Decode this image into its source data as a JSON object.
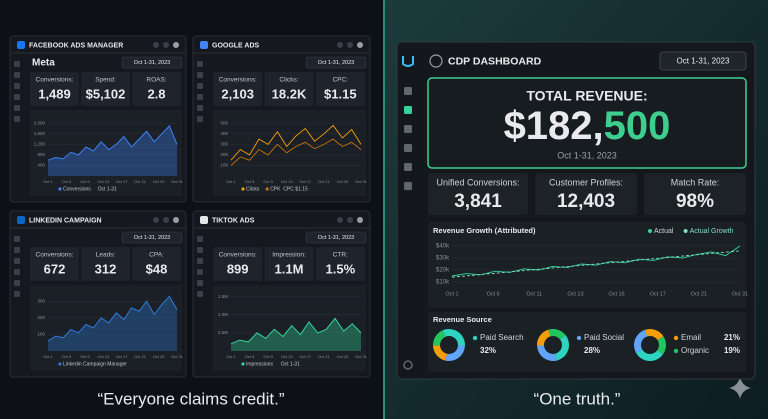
{
  "left": {
    "panels": [
      {
        "title": "FACEBOOK ADS MANAGER",
        "brand": "Meta",
        "date": "Oct 1-31, 2023",
        "logo_color": "#1877f2",
        "kpis": [
          {
            "label": "Conversions:",
            "value": "1,489"
          },
          {
            "label": "Spend:",
            "value": "$5,102"
          },
          {
            "label": "ROAS:",
            "value": "2.8"
          }
        ],
        "chart": {
          "type": "area",
          "ylim": [
            0,
            2200
          ],
          "yticks": [
            400,
            800,
            {
              "value": 1200,
              "label": "1,200"
            },
            {
              "value": 1600,
              "label": "1,600"
            },
            {
              "value": 2000,
              "label": "2,000"
            }
          ],
          "xticks": [
            "Oct 1",
            "Oct 5",
            "Oct 9",
            "Oct 13",
            "Oct 17",
            "Oct 21",
            "Oct 25",
            "Oct 31"
          ],
          "series": [
            {
              "name": "Conversions",
              "color": "#3b82f6",
              "values": [
                600,
                700,
                650,
                900,
                800,
                1100,
                950,
                1300,
                1000,
                1200,
                1500,
                1100,
                1400,
                1700,
                1300,
                1600,
                1900,
                1200
              ]
            }
          ],
          "legend_note": "Oct 1-31"
        }
      },
      {
        "title": "GOOGLE ADS",
        "date": "Oct 1-31, 2023",
        "logo_color": "#4285f4",
        "kpis": [
          {
            "label": "Conversions:",
            "value": "2,103"
          },
          {
            "label": "Clicks:",
            "value": "18.2K"
          },
          {
            "label": "CPC:",
            "value": "$1.15"
          }
        ],
        "chart": {
          "type": "line",
          "ylim": [
            0,
            550
          ],
          "yticks": [
            100,
            200,
            300,
            400,
            500
          ],
          "xticks": [
            "Oct 1",
            "Oct 5",
            "Oct 9",
            "Oct 13",
            "Oct 17",
            "Oct 21",
            "Oct 25",
            "Oct 31"
          ],
          "series": [
            {
              "name": "Clicks",
              "color": "#f59e0b",
              "values": [
                150,
                250,
                200,
                350,
                300,
                420,
                280,
                380,
                450,
                330,
                400,
                480,
                360,
                440,
                300
              ]
            },
            {
              "name": "CPK",
              "color": "#c2700a",
              "values": [
                100,
                180,
                150,
                250,
                200,
                300,
                220,
                280,
                320,
                260,
                300,
                350,
                280,
                320,
                250
              ]
            }
          ],
          "legend_note": "CPC $1.15"
        }
      },
      {
        "title": "LINKEDIN CAMPAIGN",
        "date": "Oct 1-31, 2023",
        "logo_color": "#0a66c2",
        "kpis": [
          {
            "label": "Conversions:",
            "value": "672"
          },
          {
            "label": "Leads:",
            "value": "312"
          },
          {
            "label": "CPA:",
            "value": "$48"
          }
        ],
        "chart": {
          "type": "area",
          "ylim": [
            0,
            350
          ],
          "yticks": [
            100,
            200,
            300
          ],
          "xticks": [
            "Oct 1",
            "Oct 5",
            "Oct 9",
            "Oct 13",
            "Oct 17",
            "Oct 21",
            "Oct 25",
            "Oct 31"
          ],
          "series": [
            {
              "name": "Linkedin Campaign Manager",
              "color": "#2f7bd8",
              "values": [
                60,
                90,
                80,
                130,
                110,
                160,
                140,
                200,
                170,
                230,
                190,
                260,
                240,
                300,
                220,
                280,
                330,
                250
              ]
            }
          ]
        }
      },
      {
        "title": "TIKTOK ADS",
        "date": "Oct 1-31, 2023",
        "logo_color": "#e5e7eb",
        "kpis": [
          {
            "label": "Conversions:",
            "value": "899"
          },
          {
            "label": "Impression:",
            "value": "1.1M"
          },
          {
            "label": "CTR:",
            "value": "1.5%"
          }
        ],
        "chart": {
          "type": "area",
          "ylim": [
            0,
            1.6
          ],
          "yticks": [
            {
              "value": 0.5,
              "label": "0.5M"
            },
            {
              "value": 1,
              "label": "1.0M"
            },
            {
              "value": 1.5,
              "label": "1.5M"
            }
          ],
          "xticks": [
            "Oct 1",
            "Oct 5",
            "Oct 9",
            "Oct 13",
            "Oct 17",
            "Oct 21",
            "Oct 25",
            "Oct 31"
          ],
          "series": [
            {
              "name": "Impressions",
              "color": "#34d399",
              "values": [
                0.2,
                0.3,
                0.25,
                0.5,
                0.35,
                0.6,
                0.4,
                0.7,
                0.45,
                0.8,
                0.5,
                0.6,
                0.9,
                0.55,
                0.75,
                0.5
              ]
            }
          ],
          "legend_note": "Oct 1-31"
        }
      }
    ]
  },
  "cdp": {
    "title": "CDP DASHBOARD",
    "date": "Oct 1-31, 2023",
    "total": {
      "label": "TOTAL REVENUE:",
      "value_main": "$182,",
      "value_accent": "500",
      "period": "Oct 1-31, 2023"
    },
    "kpis": [
      {
        "label": "Unified Conversions:",
        "value": "3,841"
      },
      {
        "label": "Customer Profiles:",
        "value": "12,403"
      },
      {
        "label": "Match Rate:",
        "value": "98%"
      }
    ],
    "growth": {
      "type": "line",
      "title": "Revenue Growth (Attributed)",
      "ylim": [
        5000,
        45000
      ],
      "yticks": [
        {
          "value": 10000,
          "label": "$10k"
        },
        {
          "value": 20000,
          "label": "$20k"
        },
        {
          "value": 30000,
          "label": "$30k"
        },
        {
          "value": 40000,
          "label": "$40k"
        }
      ],
      "xticks": [
        "Oct 1",
        "Oct 6",
        "Oct 11",
        "Oct 13",
        "Oct 16",
        "Oct 17",
        "Oct 21",
        "Oct 31"
      ],
      "series": [
        {
          "name": "Actual",
          "color": "#34d399",
          "values": [
            15000,
            17000,
            16000,
            19000,
            18000,
            21000,
            20000,
            23000,
            22000,
            25000,
            24000,
            27000,
            26000,
            29000,
            28000,
            31000,
            30000,
            33000,
            35000,
            32000,
            40000
          ]
        },
        {
          "name": "Actual Growth",
          "color": "#7fe0c0",
          "dashed": true,
          "values": [
            14000,
            36000
          ]
        }
      ]
    },
    "source": {
      "type": "pie",
      "title": "Revenue Source",
      "categories": [
        "Paid Search",
        "Paid Social",
        "Email",
        "Organic"
      ],
      "values": [
        32,
        28,
        21,
        19
      ],
      "value_labels": [
        "32%",
        "28%",
        "21%",
        "19%"
      ],
      "colors": [
        "#2dd4bf",
        "#60a5fa",
        "#f59e0b",
        "#22c55e"
      ]
    }
  },
  "captions": [
    "“Everyone claims credit.”",
    "“One truth.”"
  ]
}
